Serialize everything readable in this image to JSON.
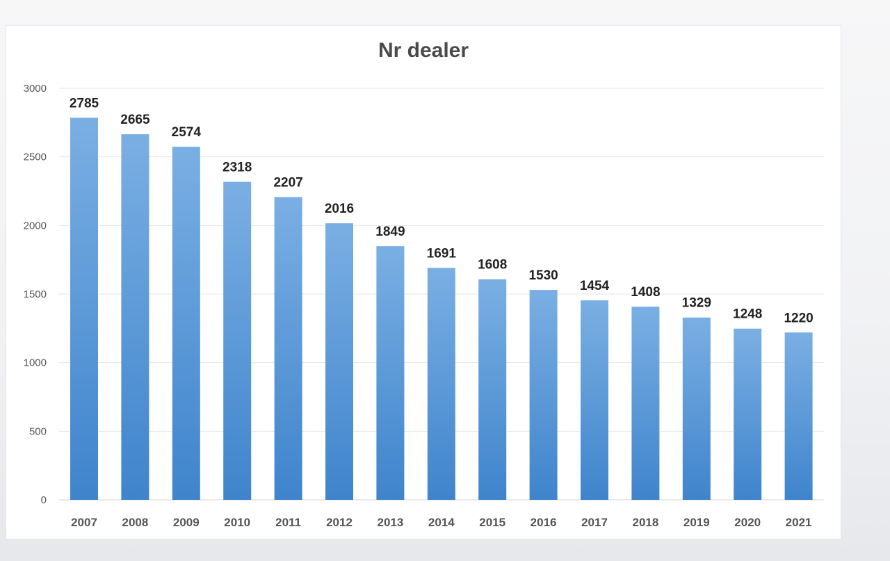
{
  "chart_data": {
    "type": "bar",
    "title": "Nr dealer",
    "xlabel": "",
    "ylabel": "",
    "categories": [
      "2007",
      "2008",
      "2009",
      "2010",
      "2011",
      "2012",
      "2013",
      "2014",
      "2015",
      "2016",
      "2017",
      "2018",
      "2019",
      "2020",
      "2021"
    ],
    "values": [
      2785,
      2665,
      2574,
      2318,
      2207,
      2016,
      1849,
      1691,
      1608,
      1530,
      1454,
      1408,
      1329,
      1248,
      1220
    ],
    "ylim": [
      0,
      3000
    ],
    "yticks": [
      "0",
      "500",
      "1000",
      "1500",
      "2000",
      "2500",
      "3000"
    ],
    "grid": true,
    "legend": "none",
    "colors": {
      "bar_light": "#7aafe3",
      "bar_dark": "#3f84cc",
      "grid": "#e4e4e4"
    }
  }
}
